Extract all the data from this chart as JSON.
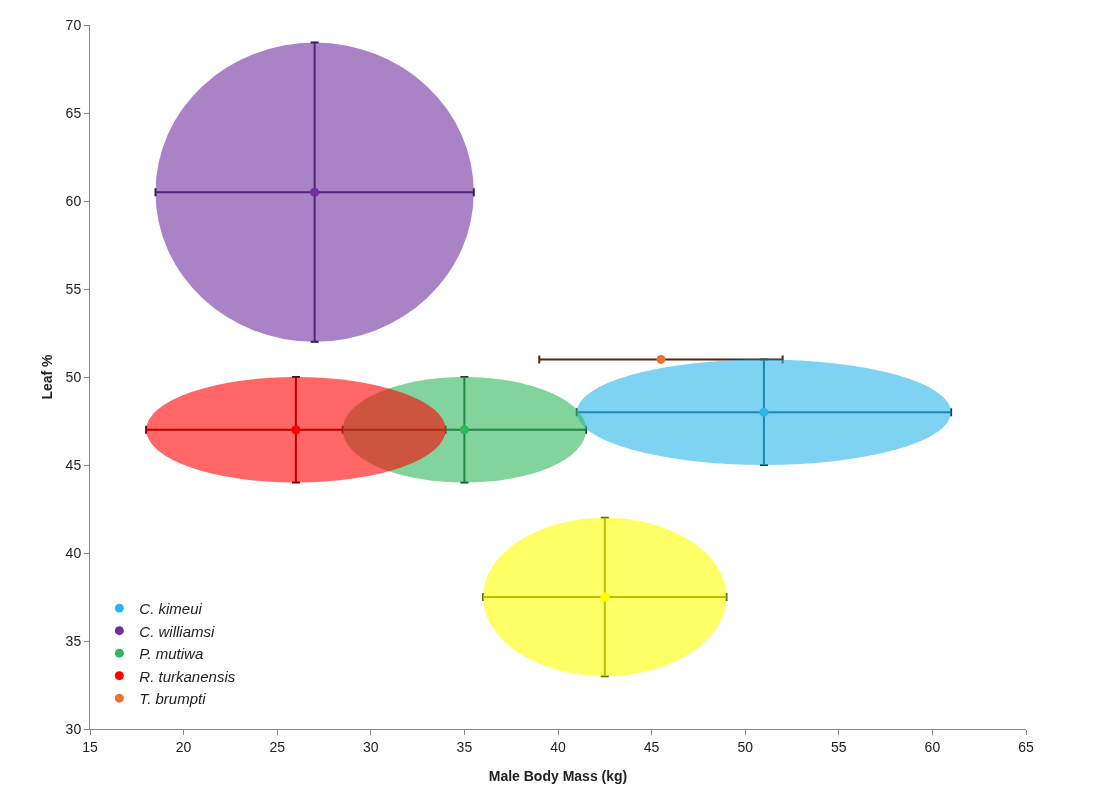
{
  "chart_data": {
    "type": "scatter",
    "xlabel": "Male Body Mass (kg)",
    "ylabel": "Leaf %",
    "xlim": [
      15,
      65
    ],
    "xticks": [
      15,
      20,
      25,
      30,
      35,
      40,
      45,
      50,
      55,
      60,
      65
    ],
    "ylim": [
      30,
      70
    ],
    "yticks": [
      30,
      35,
      40,
      45,
      50,
      55,
      60,
      65,
      70
    ],
    "grid": false,
    "legend": "bottom left",
    "marker": "circle",
    "series": [
      {
        "name": "C. kimeui",
        "color": "#29b6ea",
        "x": [
          51
        ],
        "values": [
          48
        ],
        "errors": [
          3
        ],
        "xerrors": [
          10
        ]
      },
      {
        "name": "C. williamsi",
        "color": "#7030a0",
        "x": [
          27
        ],
        "values": [
          60.5
        ],
        "errors": [
          8.5
        ],
        "xerrors": [
          8.5
        ]
      },
      {
        "name": "P. mutiwa",
        "color": "#2eb85c",
        "x": [
          35
        ],
        "values": [
          47
        ],
        "errors": [
          3
        ],
        "xerrors": [
          6.5
        ]
      },
      {
        "name": "R. turkanensis",
        "color": "#ff0000",
        "x": [
          26
        ],
        "values": [
          47
        ],
        "errors": [
          3
        ],
        "xerrors": [
          8
        ]
      },
      {
        "name": "T. brumpti",
        "color": "#e97132",
        "x": [
          45.5
        ],
        "values": [
          51
        ],
        "errors": [
          null
        ],
        "xerrors": [
          6.5
        ]
      },
      {
        "color": "#ffff00",
        "x": [
          42.5
        ],
        "values": [
          37.5
        ],
        "errors": [
          4.5
        ],
        "xerrors": [
          6.5
        ]
      }
    ]
  }
}
